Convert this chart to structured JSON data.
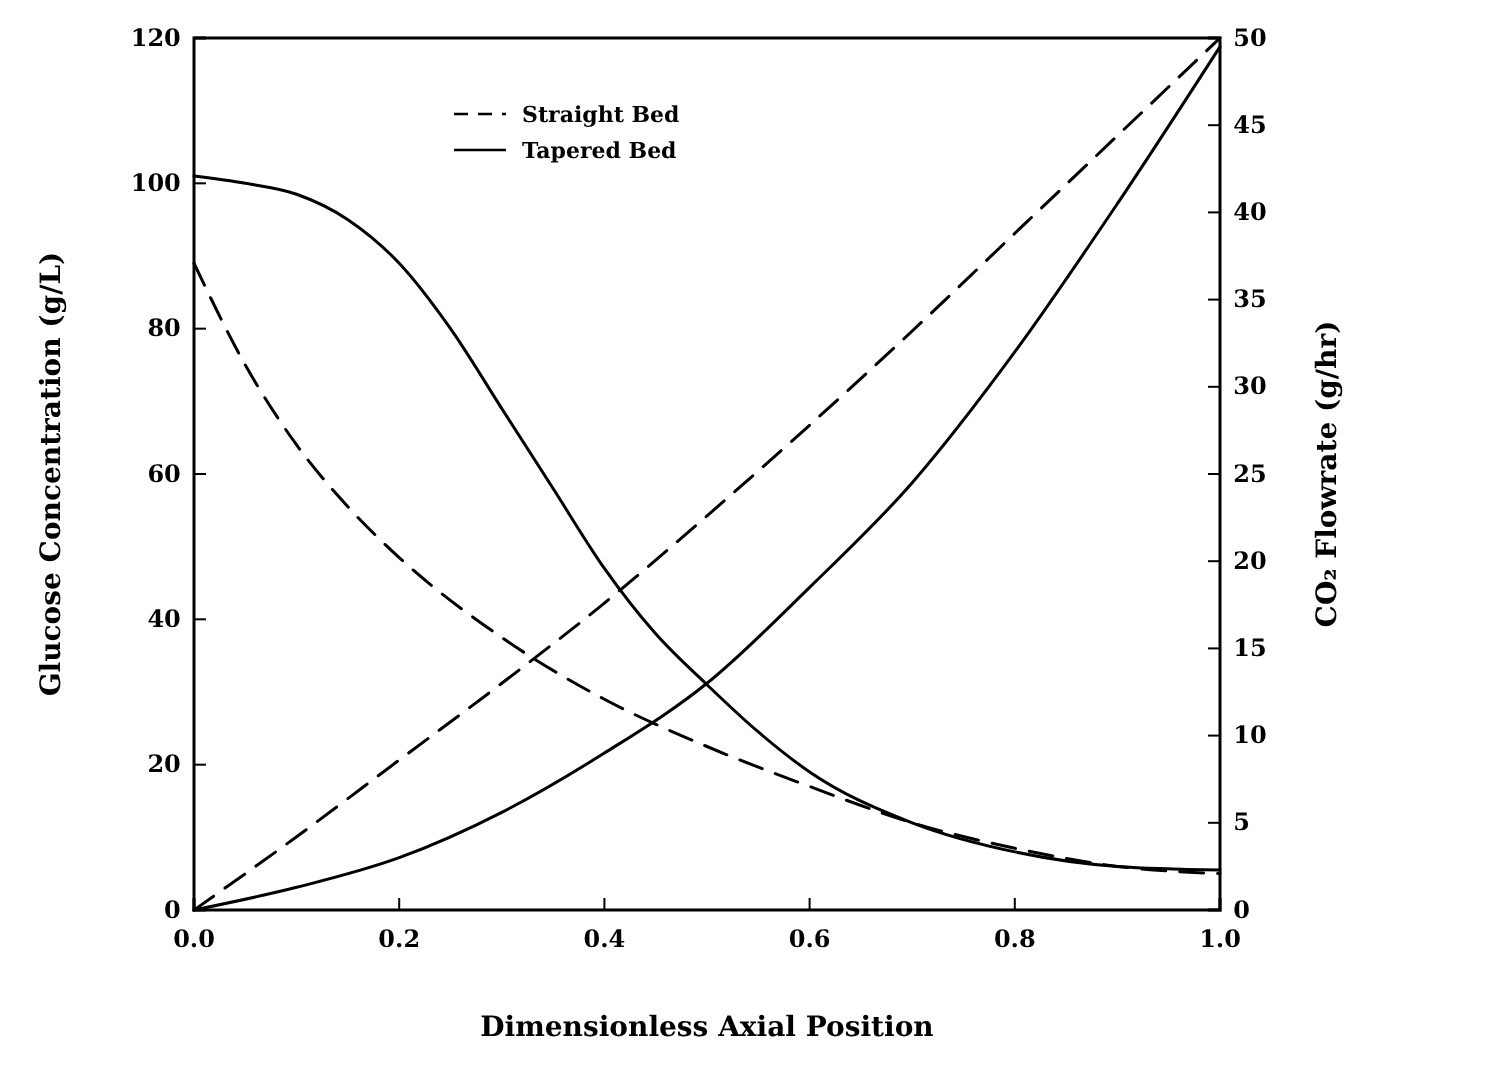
{
  "chart_data": {
    "type": "line",
    "xlabel": "Dimensionless Axial Position",
    "ylabel": "Glucose Concentration (g/L)",
    "y2label": "CO₂ Flowrate (g/hr)",
    "xlim": [
      0,
      1
    ],
    "xticks": [
      {
        "value": 0,
        "label": "0.0"
      },
      0.2,
      0.4,
      0.6,
      0.8,
      {
        "value": 1,
        "label": "1.0"
      }
    ],
    "ylim": [
      0,
      120
    ],
    "yticks": [
      0,
      20,
      40,
      60,
      80,
      100,
      120
    ],
    "y2lim": [
      0,
      50
    ],
    "y2ticks": [
      0,
      5,
      10,
      15,
      20,
      25,
      30,
      35,
      40,
      45,
      50
    ],
    "legend": "top left",
    "grid": false,
    "marker": "none",
    "series": [
      {
        "name": "Straight Bed",
        "color": "#000000",
        "line_style": "dashed",
        "x": [
          0,
          0.05,
          0.1,
          0.15,
          0.2,
          0.3,
          0.4,
          0.5,
          0.6,
          0.7,
          0.8,
          0.9,
          1
        ],
        "values": [
          89,
          75,
          64,
          55.5,
          48.5,
          37.5,
          29,
          22.5,
          17,
          12,
          8.5,
          6,
          5
        ]
      },
      {
        "name": "Tapered Bed",
        "color": "#000000",
        "line_style": "solid",
        "x": [
          0,
          0.05,
          0.1,
          0.15,
          0.2,
          0.25,
          0.3,
          0.35,
          0.4,
          0.45,
          0.5,
          0.55,
          0.6,
          0.7,
          0.8,
          0.9,
          1
        ],
        "values": [
          101,
          100,
          98.5,
          95,
          89,
          80,
          69,
          58,
          47,
          38,
          31,
          24.5,
          19,
          12,
          8,
          6,
          5.5
        ]
      },
      {
        "color": "#000000",
        "line_style": "dashed",
        "axis": "y2",
        "x": [
          0,
          0.1,
          0.2,
          0.3,
          0.4,
          0.5,
          0.6,
          0.7,
          0.8,
          0.9,
          1
        ],
        "values": [
          0,
          4.2,
          8.6,
          13,
          17.6,
          22.6,
          27.8,
          33.2,
          38.8,
          44.4,
          50
        ]
      },
      {
        "color": "#000000",
        "line_style": "solid",
        "axis": "y2",
        "x": [
          0,
          0.1,
          0.2,
          0.3,
          0.4,
          0.5,
          0.6,
          0.7,
          0.8,
          0.9,
          1
        ],
        "values": [
          0,
          1.3,
          3,
          5.6,
          9,
          13,
          18.5,
          24.5,
          32,
          40.5,
          49.5
        ]
      }
    ]
  }
}
